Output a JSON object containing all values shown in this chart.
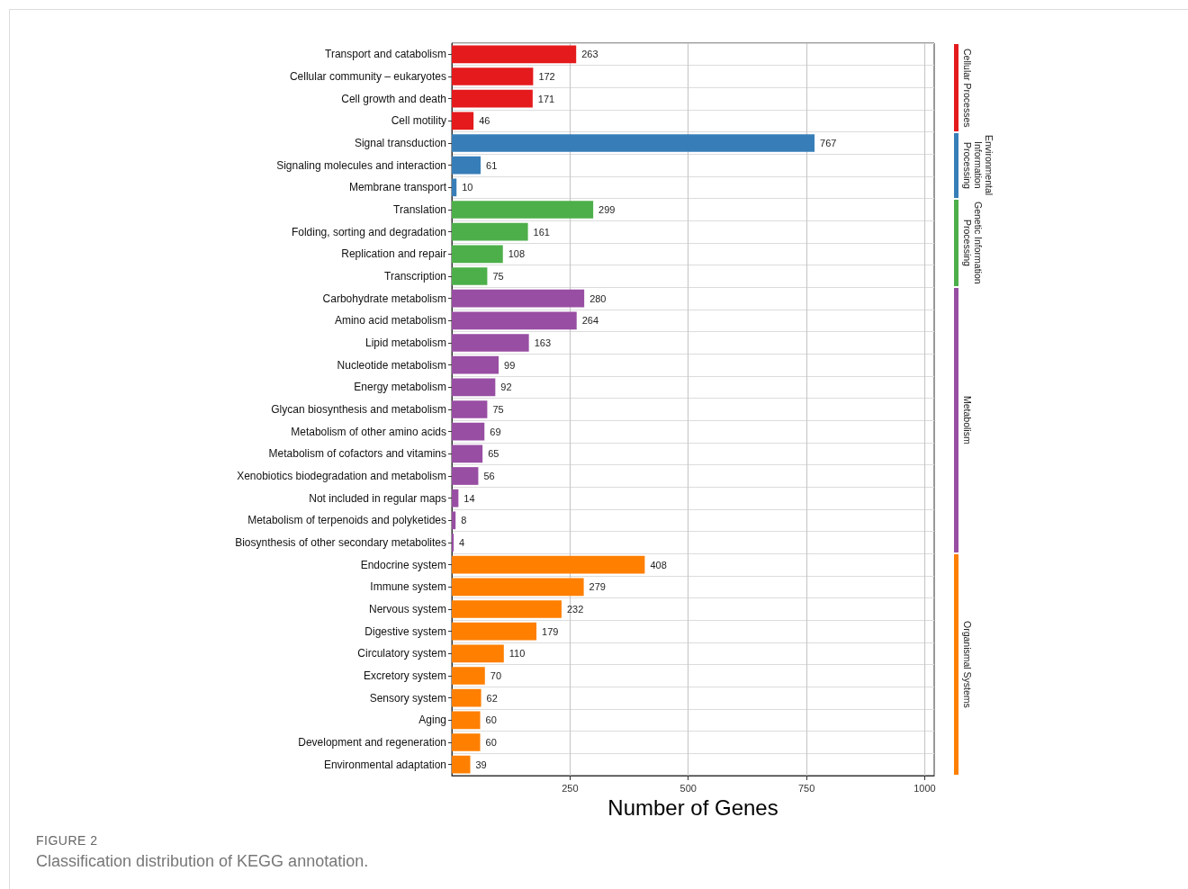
{
  "chart_data": {
    "type": "bar",
    "orientation": "horizontal",
    "xlabel": "Number of Genes",
    "categories": [
      "Transport and catabolism",
      "Cellular community – eukaryotes",
      "Cell growth and death",
      "Cell motility",
      "Signal transduction",
      "Signaling molecules and interaction",
      "Membrane transport",
      "Translation",
      "Folding, sorting and degradation",
      "Replication and repair",
      "Transcription",
      "Carbohydrate metabolism",
      "Amino acid metabolism",
      "Lipid metabolism",
      "Nucleotide metabolism",
      "Energy metabolism",
      "Glycan biosynthesis and metabolism",
      "Metabolism of other amino acids",
      "Metabolism of cofactors and vitamins",
      "Xenobiotics biodegradation and metabolism",
      "Not included in regular maps",
      "Metabolism of terpenoids and polyketides",
      "Biosynthesis of other secondary metabolites",
      "Endocrine system",
      "Immune system",
      "Nervous system",
      "Digestive system",
      "Circulatory system",
      "Excretory system",
      "Sensory system",
      "Aging",
      "Development and regeneration",
      "Environmental adaptation"
    ],
    "series": [
      {
        "name": "Cellular Processes",
        "color": "#e41a1c",
        "values": [
          263,
          172,
          171,
          46,
          null,
          null,
          null,
          null,
          null,
          null,
          null,
          null,
          null,
          null,
          null,
          null,
          null,
          null,
          null,
          null,
          null,
          null,
          null,
          null,
          null,
          null,
          null,
          null,
          null,
          null,
          null,
          null,
          null
        ]
      },
      {
        "name": "Environmental Information Processing",
        "color": "#377eb8",
        "values": [
          null,
          null,
          null,
          null,
          767,
          61,
          10,
          null,
          null,
          null,
          null,
          null,
          null,
          null,
          null,
          null,
          null,
          null,
          null,
          null,
          null,
          null,
          null,
          null,
          null,
          null,
          null,
          null,
          null,
          null,
          null,
          null,
          null
        ]
      },
      {
        "name": "Genetic Information Processing",
        "color": "#4daf4a",
        "values": [
          null,
          null,
          null,
          null,
          null,
          null,
          null,
          299,
          161,
          108,
          75,
          null,
          null,
          null,
          null,
          null,
          null,
          null,
          null,
          null,
          null,
          null,
          null,
          null,
          null,
          null,
          null,
          null,
          null,
          null,
          null,
          null,
          null
        ]
      },
      {
        "name": "Metabolism",
        "color": "#984ea3",
        "values": [
          null,
          null,
          null,
          null,
          null,
          null,
          null,
          null,
          null,
          null,
          null,
          280,
          264,
          163,
          99,
          92,
          75,
          69,
          65,
          56,
          14,
          8,
          4,
          null,
          null,
          null,
          null,
          null,
          null,
          null,
          null,
          null,
          null
        ]
      },
      {
        "name": "Organismal Systems",
        "color": "#ff7f00",
        "values": [
          null,
          null,
          null,
          null,
          null,
          null,
          null,
          null,
          null,
          null,
          null,
          null,
          null,
          null,
          null,
          null,
          null,
          null,
          null,
          null,
          null,
          null,
          null,
          408,
          279,
          232,
          179,
          110,
          70,
          62,
          60,
          60,
          39
        ]
      }
    ],
    "xlim": [
      0,
      1020
    ],
    "xticks": [
      250,
      500,
      750,
      1000
    ],
    "grid": true,
    "legend": "right",
    "data_labels": true,
    "annotations": [
      "FIGURE 2",
      "Classification distribution of KEGG annotation."
    ]
  }
}
